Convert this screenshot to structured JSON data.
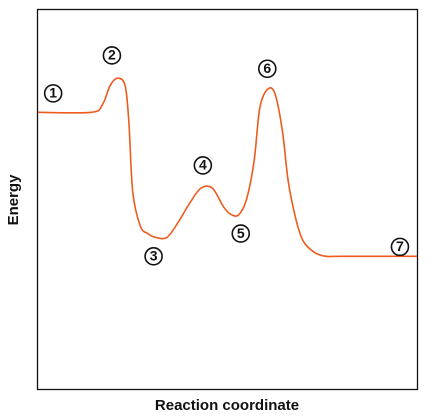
{
  "chart_data": {
    "type": "line",
    "xlabel": "Reaction coordinate",
    "ylabel": "Energy",
    "xlim": [
      0,
      100
    ],
    "ylim": [
      0,
      100
    ],
    "grid": false,
    "legend": "none",
    "series": [
      {
        "color": "#ef5a1d",
        "points": [
          [
            0,
            73
          ],
          [
            14,
            73
          ],
          [
            17,
            75
          ],
          [
            19,
            80
          ],
          [
            21,
            82
          ],
          [
            23,
            80
          ],
          [
            24,
            70
          ],
          [
            25,
            52
          ],
          [
            27,
            43
          ],
          [
            29,
            41
          ],
          [
            31,
            40
          ],
          [
            34,
            40
          ],
          [
            37,
            44
          ],
          [
            40,
            49
          ],
          [
            43,
            53
          ],
          [
            46,
            53
          ],
          [
            49,
            48
          ],
          [
            51,
            46
          ],
          [
            53,
            46
          ],
          [
            55,
            50
          ],
          [
            57,
            60
          ],
          [
            58.5,
            74
          ],
          [
            60.5,
            79
          ],
          [
            62.5,
            78
          ],
          [
            64.5,
            68
          ],
          [
            66,
            55
          ],
          [
            68,
            45
          ],
          [
            70,
            39
          ],
          [
            73,
            36
          ],
          [
            76,
            35
          ],
          [
            80,
            35
          ],
          [
            100,
            35
          ]
        ]
      }
    ],
    "markers": [
      {
        "label": "1",
        "x": 4,
        "y": 78
      },
      {
        "label": "2",
        "x": 19.5,
        "y": 88
      },
      {
        "label": "3",
        "x": 30.5,
        "y": 35
      },
      {
        "label": "4",
        "x": 43.5,
        "y": 59
      },
      {
        "label": "5",
        "x": 53.5,
        "y": 41
      },
      {
        "label": "6",
        "x": 60.5,
        "y": 84.5
      },
      {
        "label": "7",
        "x": 95.5,
        "y": 37.5
      }
    ]
  }
}
